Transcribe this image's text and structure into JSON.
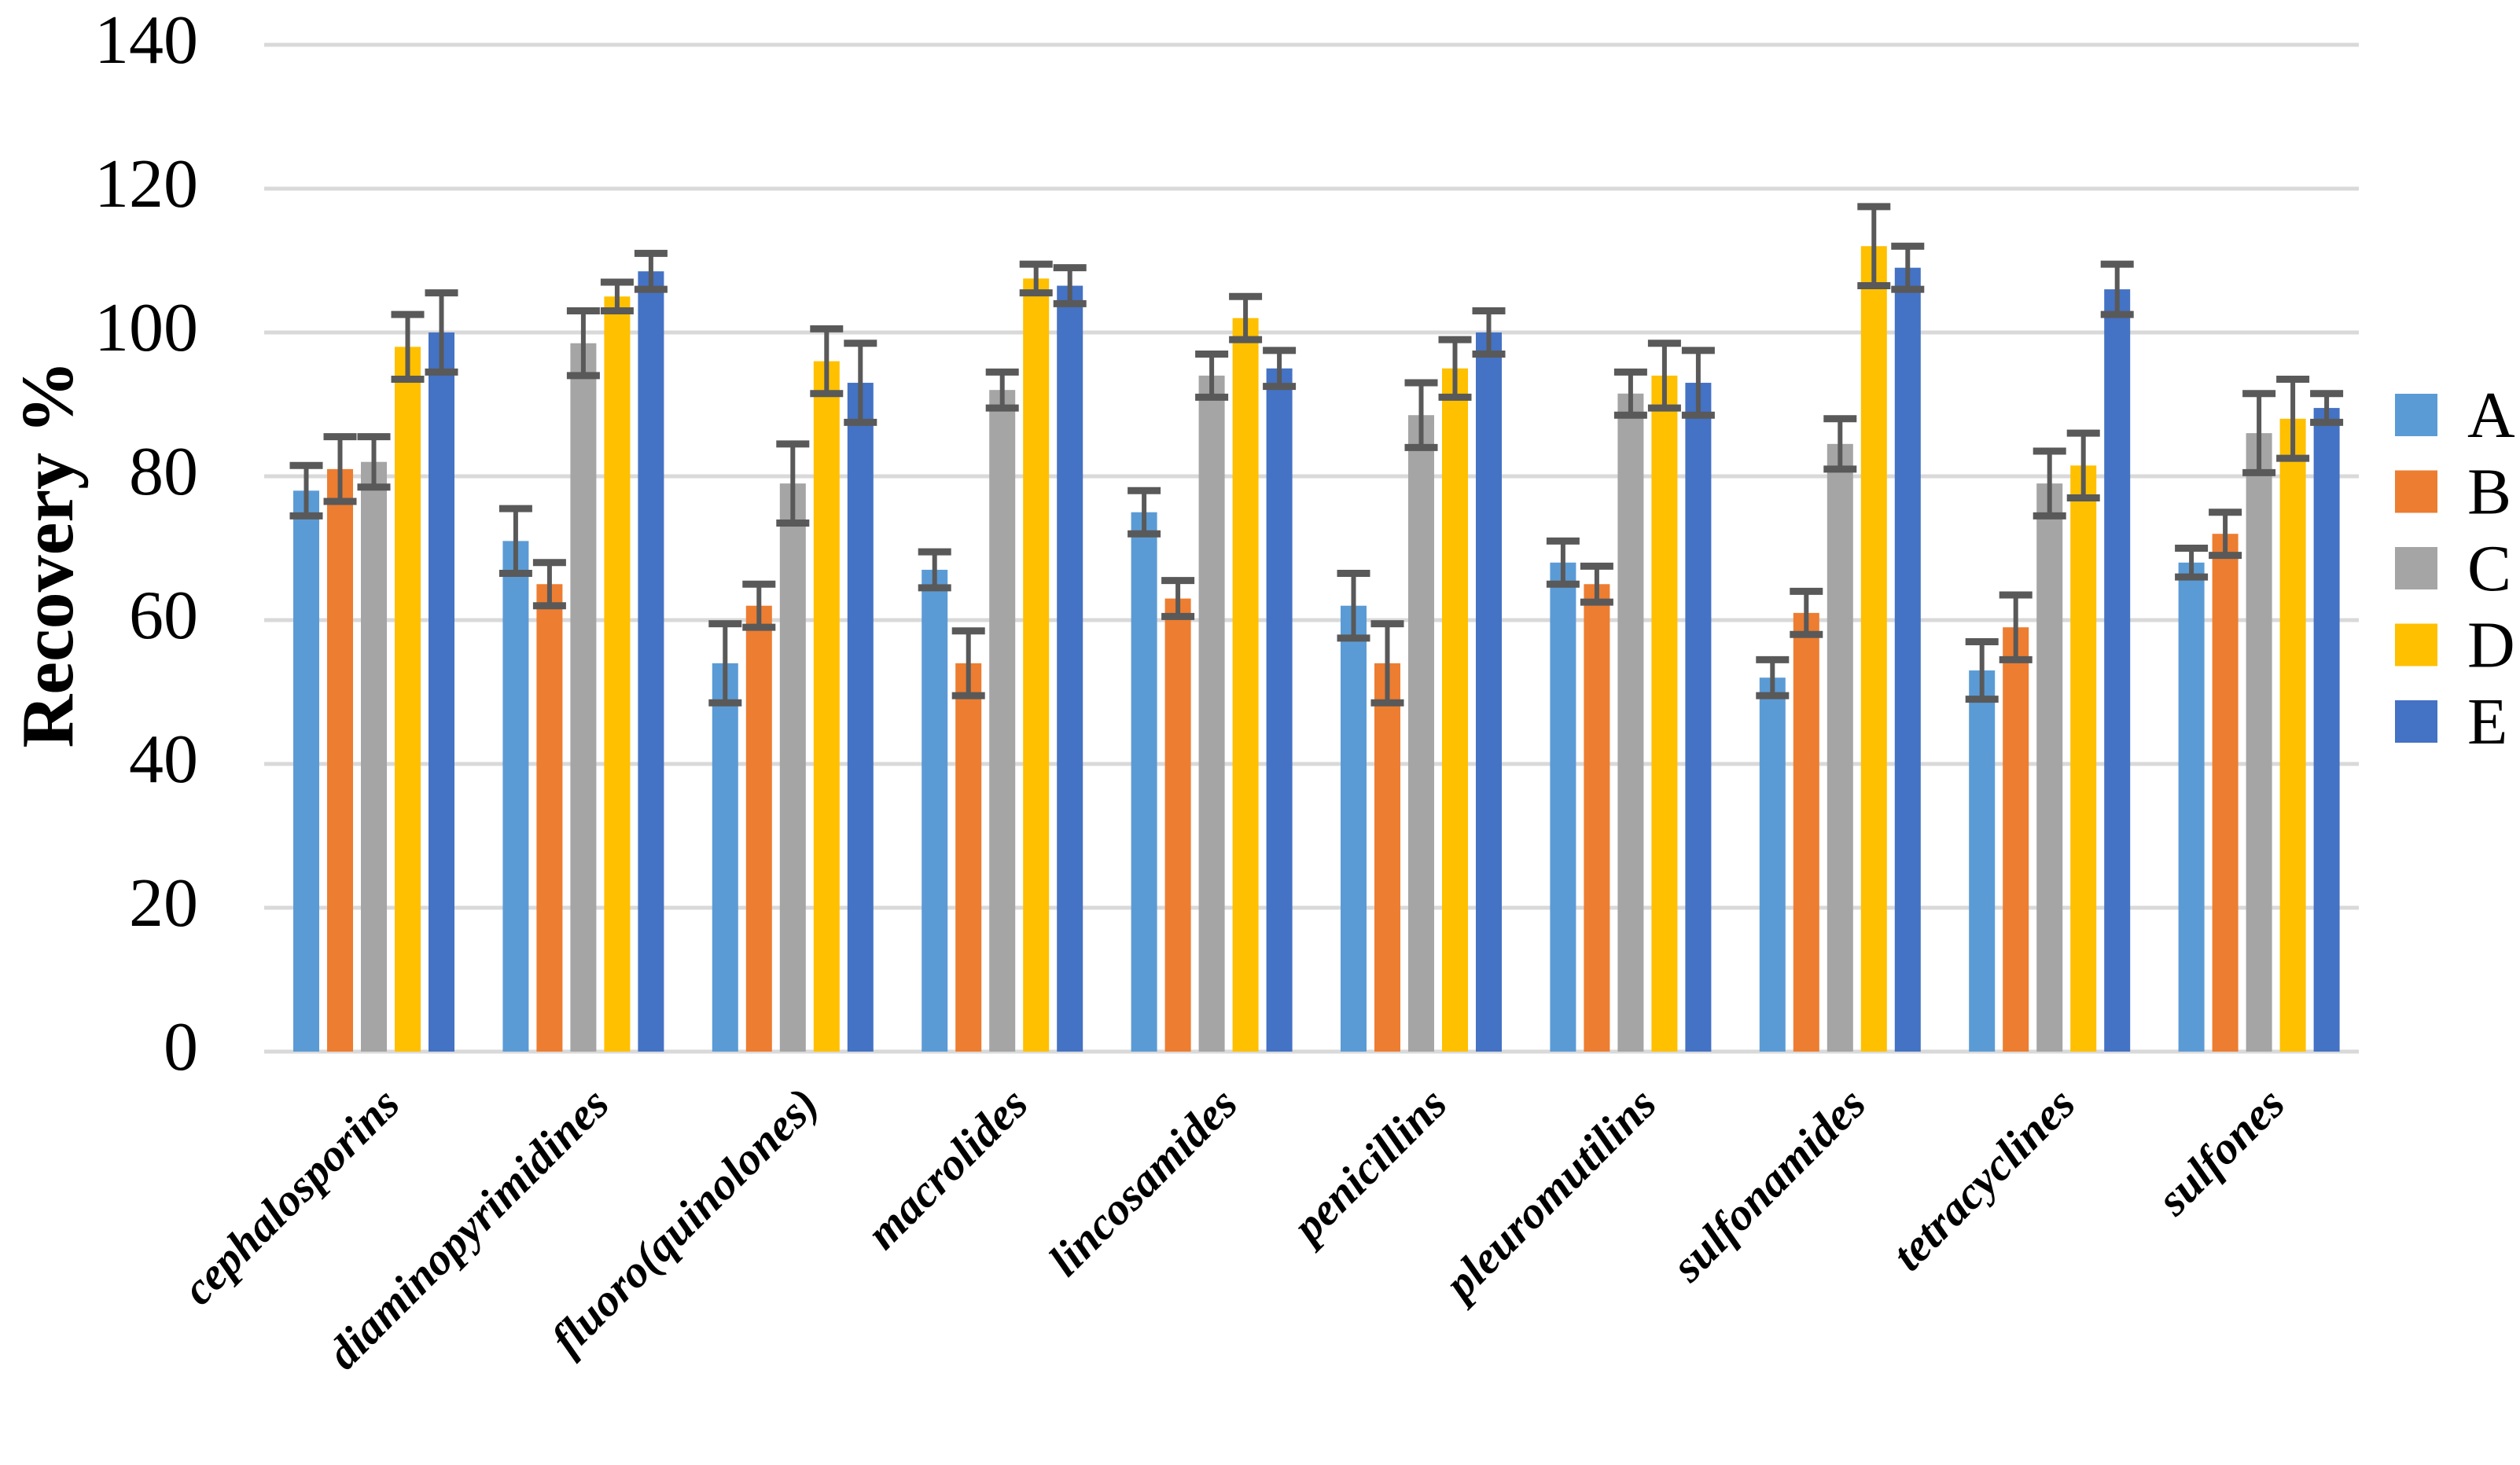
{
  "chart_data": {
    "type": "bar",
    "title": "",
    "xlabel": "",
    "ylabel": "Recovery %",
    "ylim": [
      0,
      140
    ],
    "yticks": [
      0,
      20,
      40,
      60,
      80,
      100,
      120,
      140
    ],
    "grid": true,
    "legend_position": "right",
    "error_bars": true,
    "categories": [
      "cephalosporins",
      "diaminopyrimidines",
      "fluoro(quinolones)",
      "macrolides",
      "lincosamides",
      "penicillins",
      "pleuromutilins",
      "sulfonamides",
      "tetracyclines",
      "sulfones"
    ],
    "series": [
      {
        "name": "A",
        "color": "#5B9BD5",
        "values": [
          78,
          71,
          54,
          67,
          75,
          62,
          68,
          52,
          53,
          68
        ],
        "errors": [
          3.5,
          4.5,
          5.5,
          2.5,
          3,
          4.5,
          3,
          2.5,
          4,
          2
        ]
      },
      {
        "name": "B",
        "color": "#ED7D31",
        "values": [
          81,
          65,
          62,
          54,
          63,
          54,
          65,
          61,
          59,
          72
        ],
        "errors": [
          4.5,
          3,
          3,
          4.5,
          2.5,
          5.5,
          2.5,
          3,
          4.5,
          3
        ]
      },
      {
        "name": "C",
        "color": "#A5A5A5",
        "values": [
          82,
          98.5,
          79,
          92,
          94,
          88.5,
          91.5,
          84.5,
          79,
          86
        ],
        "errors": [
          3.5,
          4.5,
          5.5,
          2.5,
          3,
          4.5,
          3,
          3.5,
          4.5,
          5.5
        ]
      },
      {
        "name": "D",
        "color": "#FFC000",
        "values": [
          98,
          105,
          96,
          107.5,
          102,
          95,
          94,
          112,
          81.5,
          88
        ],
        "errors": [
          4.5,
          2,
          4.5,
          2,
          3,
          4,
          4.5,
          5.5,
          4.5,
          5.5
        ]
      },
      {
        "name": "E",
        "color": "#4472C4",
        "values": [
          100,
          108.5,
          93,
          106.5,
          95,
          100,
          93,
          109,
          106,
          89.5
        ],
        "errors": [
          5.5,
          2.5,
          5.5,
          2.5,
          2.5,
          3,
          4.5,
          3,
          3.5,
          2
        ]
      }
    ]
  },
  "styles": {
    "background": "#FFFFFF",
    "gridline_color": "#D9D9D9",
    "error_bar_color": "#595959",
    "text_color": "#000000"
  }
}
